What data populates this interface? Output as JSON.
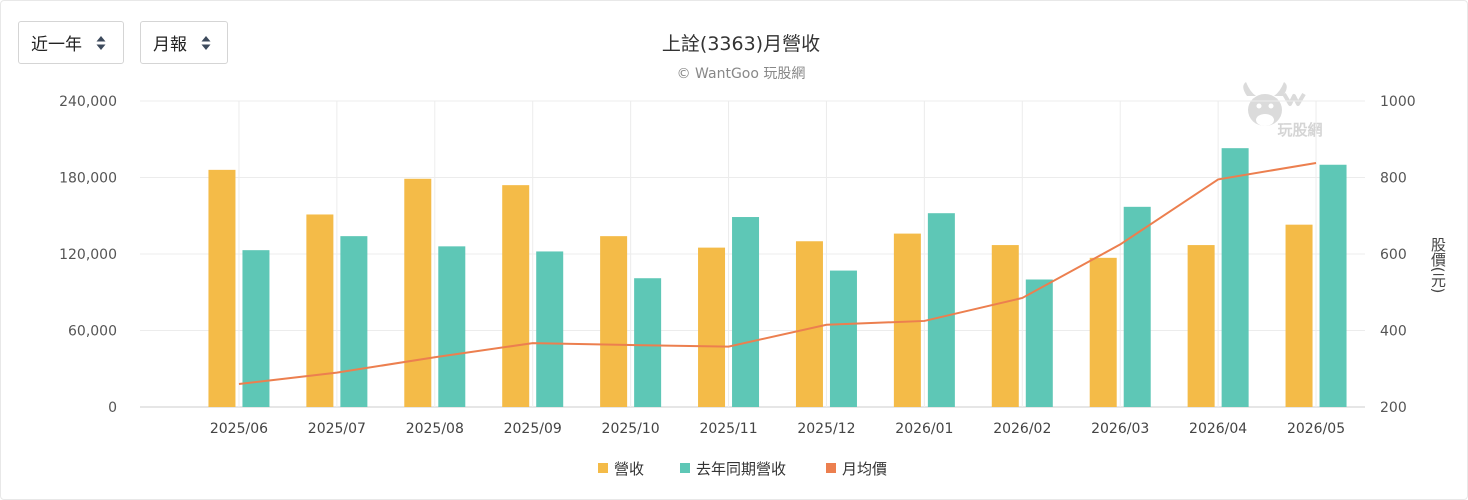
{
  "controls": {
    "range": {
      "value": "近一年",
      "icon": "sort-caret-icon"
    },
    "period": {
      "value": "月報",
      "icon": "sort-caret-icon"
    }
  },
  "watermark": {
    "text": "玩股網",
    "icon": "wantgoo-cow-logo"
  },
  "chart_data": {
    "type": "bar",
    "title": "上詮(3363)月營收",
    "subtitle": "© WantGoo 玩股網",
    "categories": [
      "2025/06",
      "2025/07",
      "2025/08",
      "2025/09",
      "2025/10",
      "2025/11",
      "2025/12",
      "2026/01",
      "2026/02",
      "2026/03",
      "2026/04",
      "2026/05"
    ],
    "y_left": {
      "label": "",
      "ticks": [
        "240,000",
        "180,000",
        "120,000",
        "60,000",
        "0"
      ],
      "ylim": [
        0,
        240000
      ]
    },
    "y_right": {
      "label": "股價(元)",
      "ticks": [
        "1000",
        "800",
        "600",
        "400",
        "200"
      ],
      "ylim": [
        200,
        1000
      ]
    },
    "series": [
      {
        "name": "營收",
        "type": "bar",
        "color": "#f4bb48",
        "values": [
          186000,
          151000,
          179000,
          174000,
          134000,
          125000,
          130000,
          136000,
          127000,
          117000,
          127000,
          143000
        ]
      },
      {
        "name": "去年同期營收",
        "type": "bar",
        "color": "#5ec7b6",
        "values": [
          123000,
          134000,
          126000,
          122000,
          101000,
          149000,
          107000,
          152000,
          100000,
          157000,
          203000,
          190000
        ]
      },
      {
        "name": "月均價",
        "type": "line",
        "color": "#ec7f4f",
        "values": [
          260,
          290,
          330,
          367,
          362,
          358,
          415,
          425,
          485,
          625,
          795,
          838
        ]
      }
    ],
    "grid": true,
    "legend": "bottom-center"
  }
}
